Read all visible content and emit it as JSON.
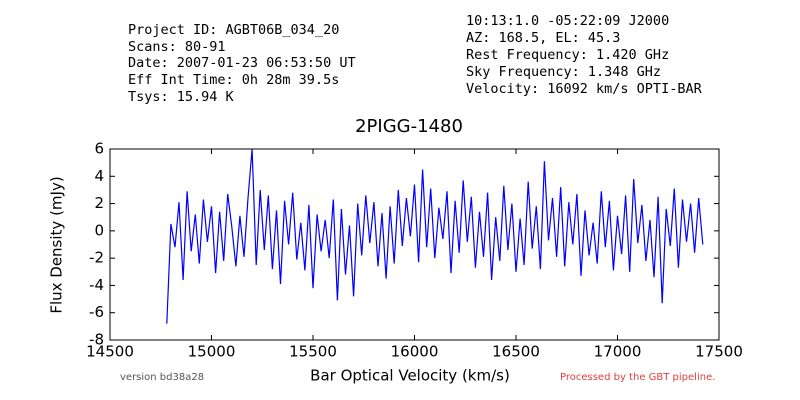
{
  "chart_data": {
    "type": "line",
    "header_left": [
      "Project ID: AGBT06B_034_20",
      "Scans: 80-91",
      "Date: 2007-01-23 06:53:50 UT",
      "Eff Int Time: 0h 28m 39.5s",
      "Tsys: 15.94 K"
    ],
    "header_right": [
      "10:13:1.0 -05:22:09 J2000",
      "AZ: 168.5, EL: 45.3",
      "Rest Frequency:   1.420 GHz",
      "Sky Frequency:    1.348 GHz",
      "Velocity: 16092 km/s OPTI-BAR"
    ],
    "title": "2PIGG-1480",
    "xlabel": "Bar Optical Velocity (km/s)",
    "ylabel": "Flux Density (mJy)",
    "footer_left": "version bd38a28",
    "footer_right": "Processed by the GBT pipeline.",
    "color": "#0000ff",
    "xlim": [
      14500,
      17500
    ],
    "ylim": [
      -8,
      6
    ],
    "xticks": [
      14500,
      15000,
      15500,
      16000,
      16500,
      17000,
      17500
    ],
    "yticks": [
      -8,
      -6,
      -4,
      -2,
      0,
      2,
      4,
      6
    ],
    "x": [
      14780,
      14800,
      14820,
      14840,
      14860,
      14880,
      14900,
      14920,
      14940,
      14960,
      14980,
      15000,
      15020,
      15040,
      15060,
      15080,
      15100,
      15120,
      15140,
      15160,
      15180,
      15200,
      15220,
      15240,
      15260,
      15280,
      15300,
      15320,
      15340,
      15360,
      15380,
      15400,
      15420,
      15440,
      15460,
      15480,
      15500,
      15520,
      15540,
      15560,
      15580,
      15600,
      15620,
      15640,
      15660,
      15680,
      15700,
      15720,
      15740,
      15760,
      15780,
      15800,
      15820,
      15840,
      15860,
      15880,
      15900,
      15920,
      15940,
      15960,
      15980,
      16000,
      16020,
      16040,
      16060,
      16080,
      16100,
      16120,
      16140,
      16160,
      16180,
      16200,
      16220,
      16240,
      16260,
      16280,
      16300,
      16320,
      16340,
      16360,
      16380,
      16400,
      16420,
      16440,
      16460,
      16480,
      16500,
      16520,
      16540,
      16560,
      16580,
      16600,
      16620,
      16640,
      16660,
      16680,
      16700,
      16720,
      16740,
      16760,
      16780,
      16800,
      16820,
      16840,
      16860,
      16880,
      16900,
      16920,
      16940,
      16960,
      16980,
      17000,
      17020,
      17040,
      17060,
      17080,
      17100,
      17120,
      17140,
      17160,
      17180,
      17200,
      17220,
      17240,
      17260,
      17280,
      17300,
      17320,
      17340,
      17360,
      17380,
      17400,
      17420
    ],
    "values": [
      -6.8,
      0.5,
      -1.2,
      2.1,
      -3.6,
      2.9,
      -1.5,
      1.2,
      -2.4,
      2.3,
      -0.8,
      1.8,
      -3.1,
      1.4,
      -2.2,
      2.7,
      0.3,
      -2.6,
      1.1,
      -1.9,
      2.4,
      6.0,
      -2.5,
      3.0,
      -1.4,
      2.6,
      -2.8,
      1.5,
      -3.9,
      2.2,
      -1.0,
      2.8,
      -2.1,
      0.6,
      -2.9,
      1.9,
      -4.2,
      1.2,
      -1.5,
      0.8,
      -2.0,
      2.3,
      -5.1,
      1.6,
      -3.2,
      0.4,
      -4.8,
      2.0,
      -1.8,
      2.6,
      -0.9,
      2.1,
      -2.6,
      1.3,
      -3.5,
      1.8,
      -2.4,
      3.0,
      -1.1,
      2.4,
      -0.4,
      3.4,
      -2.3,
      4.5,
      -1.2,
      3.1,
      -2.0,
      1.7,
      -0.6,
      2.9,
      -3.1,
      2.2,
      -1.6,
      3.7,
      -0.8,
      2.5,
      -2.7,
      1.4,
      -1.9,
      2.8,
      -3.6,
      1.0,
      -2.2,
      3.3,
      -1.4,
      2.0,
      -3.0,
      0.9,
      -2.5,
      3.6,
      -1.3,
      1.8,
      -2.8,
      5.1,
      -0.7,
      2.4,
      -1.9,
      3.2,
      -2.6,
      2.1,
      -1.0,
      2.7,
      -3.3,
      1.5,
      -1.8,
      0.6,
      -2.4,
      2.9,
      -1.2,
      2.2,
      -2.9,
      1.1,
      -1.7,
      2.6,
      -3.0,
      3.8,
      -0.9,
      1.9,
      -2.2,
      0.8,
      -3.4,
      2.5,
      -5.3,
      1.6,
      -1.1,
      3.1,
      -2.7,
      2.3,
      -0.8,
      2.0,
      -1.6,
      2.4,
      -1.0
    ]
  }
}
